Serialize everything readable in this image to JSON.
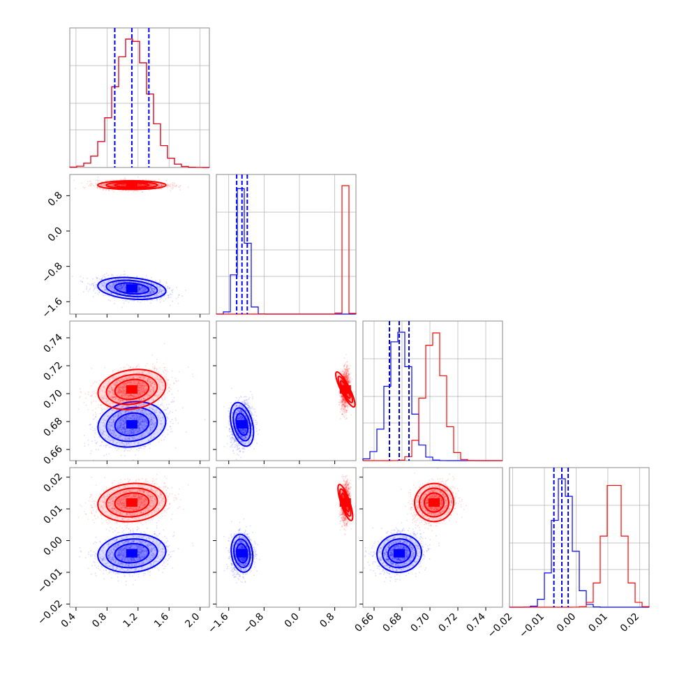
{
  "chart_data": {
    "type": "corner",
    "colors": {
      "series_a": "#0000ff",
      "series_b": "#ff0000",
      "grid": "#b0b0b0",
      "frame": "#888888"
    },
    "series": [
      {
        "color": "#0000ff",
        "params": [
          {
            "mean": 1.12,
            "sd": 0.22
          },
          {
            "mean": -1.3,
            "sd": 0.12
          },
          {
            "mean": 0.678,
            "sd": 0.008
          },
          {
            "mean": -0.004,
            "sd": 0.003
          }
        ],
        "quantiles": [
          [
            0.9,
            1.12,
            1.34
          ],
          [
            -1.42,
            -1.3,
            -1.18
          ],
          [
            0.671,
            0.678,
            0.685
          ],
          [
            -0.007,
            -0.0045,
            -0.0025
          ]
        ]
      },
      {
        "color": "#ff0000",
        "params": [
          {
            "mean": 1.12,
            "sd": 0.22
          },
          {
            "mean": 1.04,
            "sd": 0.05
          },
          {
            "mean": 0.703,
            "sd": 0.007
          },
          {
            "mean": 0.012,
            "sd": 0.003
          }
        ]
      }
    ],
    "axes": [
      {
        "range": [
          0.32,
          2.12
        ],
        "ticks": [
          0.4,
          0.8,
          1.2,
          1.6,
          2.0
        ],
        "labels": [
          "0.4",
          "0.8",
          "1.2",
          "1.6",
          "2.0"
        ]
      },
      {
        "range": [
          -1.88,
          1.28
        ],
        "ticks": [
          -1.6,
          -0.8,
          0.0,
          0.8
        ],
        "labels": [
          "−1.6",
          "−0.8",
          "0.0",
          "0.8"
        ]
      },
      {
        "range": [
          0.652,
          0.752
        ],
        "ticks": [
          0.66,
          0.68,
          0.7,
          0.72,
          0.74
        ],
        "labels": [
          "0.66",
          "0.68",
          "0.70",
          "0.72",
          "0.74"
        ]
      },
      {
        "range": [
          -0.021,
          0.023
        ],
        "ticks": [
          -0.02,
          -0.01,
          0.0,
          0.01,
          0.02
        ],
        "labels": [
          "−0.02",
          "−0.01",
          "0.00",
          "0.01",
          "0.02"
        ]
      }
    ],
    "grid": true
  }
}
